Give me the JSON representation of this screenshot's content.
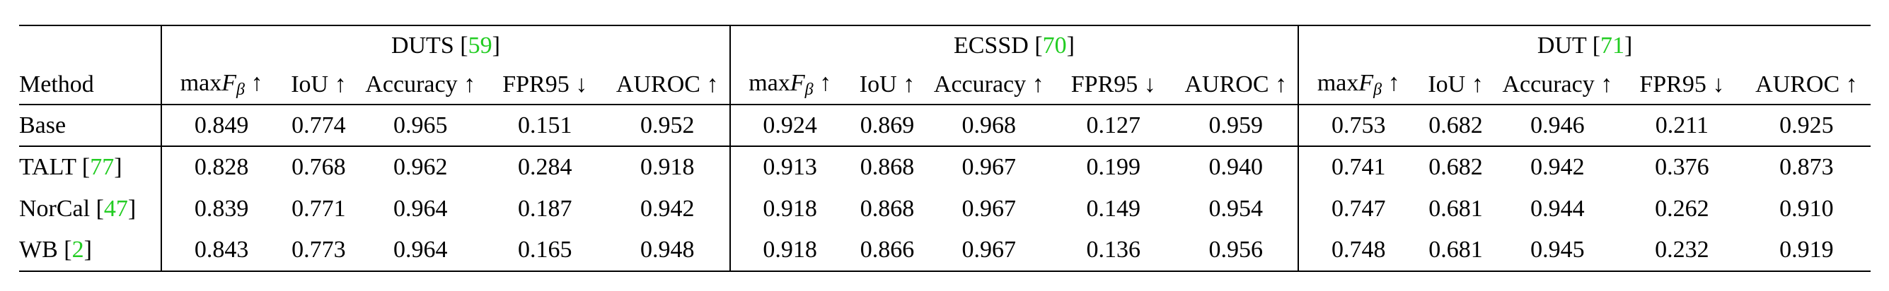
{
  "table": {
    "method_header": "Method",
    "groups": [
      {
        "name": "DUTS",
        "cite": "59"
      },
      {
        "name": "ECSSD",
        "cite": "70"
      },
      {
        "name": "DUT",
        "cite": "71"
      }
    ],
    "metric_headers": [
      {
        "pre": "max",
        "var": "F",
        "sub": "β",
        "arrow": " ↑"
      },
      {
        "label": "IoU ↑"
      },
      {
        "label": "Accuracy ↑"
      },
      {
        "label": "FPR95 ↓"
      },
      {
        "label": "AUROC ↑"
      }
    ],
    "rows": [
      {
        "method": "Base",
        "cite": "",
        "values": [
          "0.849",
          "0.774",
          "0.965",
          "0.151",
          "0.952",
          "0.924",
          "0.869",
          "0.968",
          "0.127",
          "0.959",
          "0.753",
          "0.682",
          "0.946",
          "0.211",
          "0.925"
        ],
        "bold": [
          0,
          1,
          2,
          3,
          4,
          5,
          6,
          7,
          8,
          9,
          10,
          11,
          12,
          13,
          14
        ]
      },
      {
        "method": "TALT",
        "cite": "77",
        "values": [
          "0.828",
          "0.768",
          "0.962",
          "0.284",
          "0.918",
          "0.913",
          "0.868",
          "0.967",
          "0.199",
          "0.940",
          "0.741",
          "0.682",
          "0.942",
          "0.376",
          "0.873"
        ],
        "bold": [
          11
        ]
      },
      {
        "method": "NorCal",
        "cite": "47",
        "values": [
          "0.839",
          "0.771",
          "0.964",
          "0.187",
          "0.942",
          "0.918",
          "0.868",
          "0.967",
          "0.149",
          "0.954",
          "0.747",
          "0.681",
          "0.944",
          "0.262",
          "0.910"
        ],
        "bold": []
      },
      {
        "method": "WB",
        "cite": "2",
        "values": [
          "0.843",
          "0.773",
          "0.964",
          "0.165",
          "0.948",
          "0.918",
          "0.866",
          "0.967",
          "0.136",
          "0.956",
          "0.748",
          "0.681",
          "0.945",
          "0.232",
          "0.919"
        ],
        "bold": []
      }
    ]
  }
}
